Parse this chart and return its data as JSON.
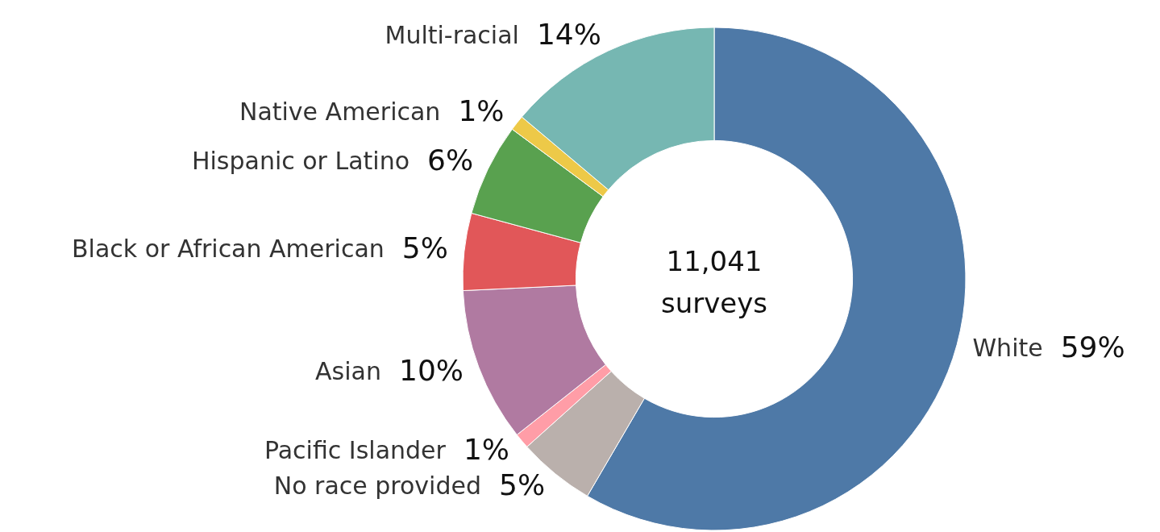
{
  "chart_data": {
    "type": "donut",
    "categories": [
      "White",
      "No race provided",
      "Pacific Islander",
      "Asian",
      "Black or African American",
      "Hispanic or Latino",
      "Native American",
      "Multi-racial"
    ],
    "values": [
      59,
      5,
      1,
      10,
      5,
      6,
      1,
      14
    ],
    "colors": [
      "#4e79a7",
      "#bab0ac",
      "#ff9da7",
      "#b07aa1",
      "#e15759",
      "#59a14f",
      "#edc948",
      "#76b7b2"
    ],
    "value_labels": [
      "59%",
      "5%",
      "1%",
      "10%",
      "5%",
      "6%",
      "1%",
      "14%"
    ],
    "annotations": [
      "11,041 surveys"
    ]
  }
}
